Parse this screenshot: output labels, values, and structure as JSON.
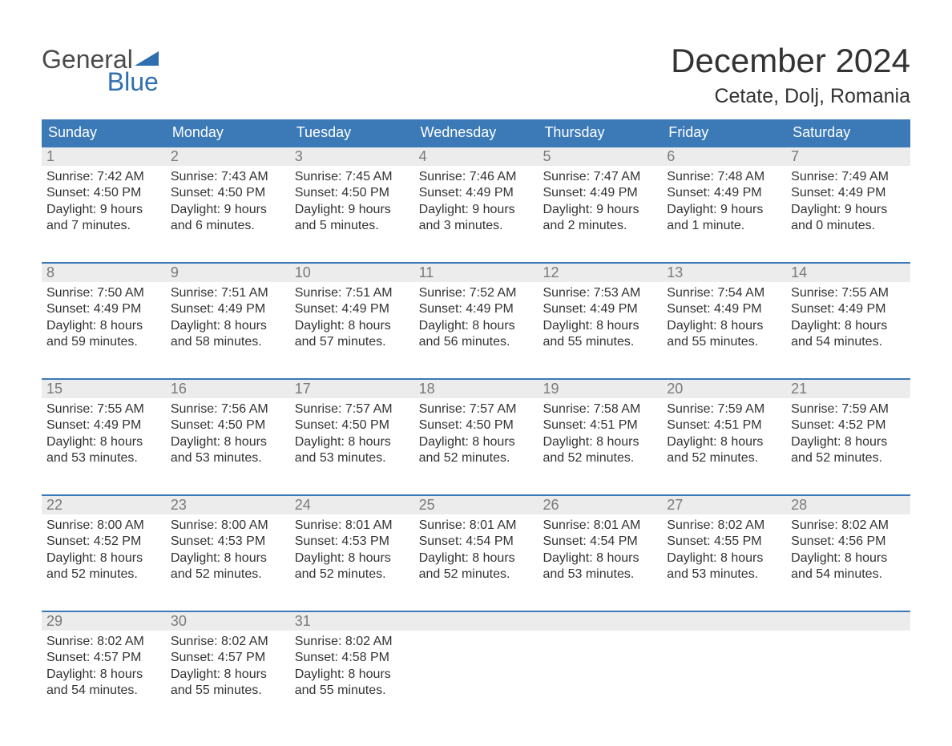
{
  "logo": {
    "general_text": "General",
    "general_color": "#4b4b4b",
    "blue_text": "Blue",
    "blue_color": "#2f6fb0",
    "flag_color": "#2f6fb0"
  },
  "title": "December 2024",
  "subtitle": "Cetate, Dolj, Romania",
  "colors": {
    "header_bg": "#3b79b7",
    "header_text": "#ffffff",
    "week_border": "#3b79b7",
    "daynum_bg": "#ececec",
    "daynum_color": "#7a7a7a",
    "body_text": "#333333",
    "page_bg": "#ffffff"
  },
  "day_names": [
    "Sunday",
    "Monday",
    "Tuesday",
    "Wednesday",
    "Thursday",
    "Friday",
    "Saturday"
  ],
  "weeks": [
    [
      {
        "n": "1",
        "sr": "Sunrise: 7:42 AM",
        "ss": "Sunset: 4:50 PM",
        "d1": "Daylight: 9 hours",
        "d2": "and 7 minutes."
      },
      {
        "n": "2",
        "sr": "Sunrise: 7:43 AM",
        "ss": "Sunset: 4:50 PM",
        "d1": "Daylight: 9 hours",
        "d2": "and 6 minutes."
      },
      {
        "n": "3",
        "sr": "Sunrise: 7:45 AM",
        "ss": "Sunset: 4:50 PM",
        "d1": "Daylight: 9 hours",
        "d2": "and 5 minutes."
      },
      {
        "n": "4",
        "sr": "Sunrise: 7:46 AM",
        "ss": "Sunset: 4:49 PM",
        "d1": "Daylight: 9 hours",
        "d2": "and 3 minutes."
      },
      {
        "n": "5",
        "sr": "Sunrise: 7:47 AM",
        "ss": "Sunset: 4:49 PM",
        "d1": "Daylight: 9 hours",
        "d2": "and 2 minutes."
      },
      {
        "n": "6",
        "sr": "Sunrise: 7:48 AM",
        "ss": "Sunset: 4:49 PM",
        "d1": "Daylight: 9 hours",
        "d2": "and 1 minute."
      },
      {
        "n": "7",
        "sr": "Sunrise: 7:49 AM",
        "ss": "Sunset: 4:49 PM",
        "d1": "Daylight: 9 hours",
        "d2": "and 0 minutes."
      }
    ],
    [
      {
        "n": "8",
        "sr": "Sunrise: 7:50 AM",
        "ss": "Sunset: 4:49 PM",
        "d1": "Daylight: 8 hours",
        "d2": "and 59 minutes."
      },
      {
        "n": "9",
        "sr": "Sunrise: 7:51 AM",
        "ss": "Sunset: 4:49 PM",
        "d1": "Daylight: 8 hours",
        "d2": "and 58 minutes."
      },
      {
        "n": "10",
        "sr": "Sunrise: 7:51 AM",
        "ss": "Sunset: 4:49 PM",
        "d1": "Daylight: 8 hours",
        "d2": "and 57 minutes."
      },
      {
        "n": "11",
        "sr": "Sunrise: 7:52 AM",
        "ss": "Sunset: 4:49 PM",
        "d1": "Daylight: 8 hours",
        "d2": "and 56 minutes."
      },
      {
        "n": "12",
        "sr": "Sunrise: 7:53 AM",
        "ss": "Sunset: 4:49 PM",
        "d1": "Daylight: 8 hours",
        "d2": "and 55 minutes."
      },
      {
        "n": "13",
        "sr": "Sunrise: 7:54 AM",
        "ss": "Sunset: 4:49 PM",
        "d1": "Daylight: 8 hours",
        "d2": "and 55 minutes."
      },
      {
        "n": "14",
        "sr": "Sunrise: 7:55 AM",
        "ss": "Sunset: 4:49 PM",
        "d1": "Daylight: 8 hours",
        "d2": "and 54 minutes."
      }
    ],
    [
      {
        "n": "15",
        "sr": "Sunrise: 7:55 AM",
        "ss": "Sunset: 4:49 PM",
        "d1": "Daylight: 8 hours",
        "d2": "and 53 minutes."
      },
      {
        "n": "16",
        "sr": "Sunrise: 7:56 AM",
        "ss": "Sunset: 4:50 PM",
        "d1": "Daylight: 8 hours",
        "d2": "and 53 minutes."
      },
      {
        "n": "17",
        "sr": "Sunrise: 7:57 AM",
        "ss": "Sunset: 4:50 PM",
        "d1": "Daylight: 8 hours",
        "d2": "and 53 minutes."
      },
      {
        "n": "18",
        "sr": "Sunrise: 7:57 AM",
        "ss": "Sunset: 4:50 PM",
        "d1": "Daylight: 8 hours",
        "d2": "and 52 minutes."
      },
      {
        "n": "19",
        "sr": "Sunrise: 7:58 AM",
        "ss": "Sunset: 4:51 PM",
        "d1": "Daylight: 8 hours",
        "d2": "and 52 minutes."
      },
      {
        "n": "20",
        "sr": "Sunrise: 7:59 AM",
        "ss": "Sunset: 4:51 PM",
        "d1": "Daylight: 8 hours",
        "d2": "and 52 minutes."
      },
      {
        "n": "21",
        "sr": "Sunrise: 7:59 AM",
        "ss": "Sunset: 4:52 PM",
        "d1": "Daylight: 8 hours",
        "d2": "and 52 minutes."
      }
    ],
    [
      {
        "n": "22",
        "sr": "Sunrise: 8:00 AM",
        "ss": "Sunset: 4:52 PM",
        "d1": "Daylight: 8 hours",
        "d2": "and 52 minutes."
      },
      {
        "n": "23",
        "sr": "Sunrise: 8:00 AM",
        "ss": "Sunset: 4:53 PM",
        "d1": "Daylight: 8 hours",
        "d2": "and 52 minutes."
      },
      {
        "n": "24",
        "sr": "Sunrise: 8:01 AM",
        "ss": "Sunset: 4:53 PM",
        "d1": "Daylight: 8 hours",
        "d2": "and 52 minutes."
      },
      {
        "n": "25",
        "sr": "Sunrise: 8:01 AM",
        "ss": "Sunset: 4:54 PM",
        "d1": "Daylight: 8 hours",
        "d2": "and 52 minutes."
      },
      {
        "n": "26",
        "sr": "Sunrise: 8:01 AM",
        "ss": "Sunset: 4:54 PM",
        "d1": "Daylight: 8 hours",
        "d2": "and 53 minutes."
      },
      {
        "n": "27",
        "sr": "Sunrise: 8:02 AM",
        "ss": "Sunset: 4:55 PM",
        "d1": "Daylight: 8 hours",
        "d2": "and 53 minutes."
      },
      {
        "n": "28",
        "sr": "Sunrise: 8:02 AM",
        "ss": "Sunset: 4:56 PM",
        "d1": "Daylight: 8 hours",
        "d2": "and 54 minutes."
      }
    ],
    [
      {
        "n": "29",
        "sr": "Sunrise: 8:02 AM",
        "ss": "Sunset: 4:57 PM",
        "d1": "Daylight: 8 hours",
        "d2": "and 54 minutes."
      },
      {
        "n": "30",
        "sr": "Sunrise: 8:02 AM",
        "ss": "Sunset: 4:57 PM",
        "d1": "Daylight: 8 hours",
        "d2": "and 55 minutes."
      },
      {
        "n": "31",
        "sr": "Sunrise: 8:02 AM",
        "ss": "Sunset: 4:58 PM",
        "d1": "Daylight: 8 hours",
        "d2": "and 55 minutes."
      },
      null,
      null,
      null,
      null
    ]
  ]
}
